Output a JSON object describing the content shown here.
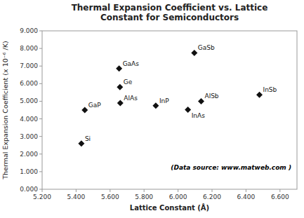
{
  "chart_data": {
    "type": "scatter",
    "title": "Thermal Expansion Coefficient vs. Lattice\nConstant for Semiconductors",
    "x_label": "Lattice Constant (Å)",
    "y_label": "Thermal Expansion Coefficient (x 10⁻⁶ /K)",
    "point_labels": [
      "Si",
      "GaP",
      "Ge",
      "GaAs",
      "AlAs",
      "InP",
      "GaSb",
      "AlSb",
      "InAs",
      "InSb"
    ],
    "x": [
      5.431,
      5.451,
      5.658,
      5.653,
      5.66,
      5.869,
      6.096,
      6.136,
      6.058,
      6.479
    ],
    "values": [
      2.6,
      4.5,
      5.8,
      6.86,
      4.9,
      4.75,
      7.75,
      5.0,
      4.52,
      5.37
    ],
    "color": "#111111",
    "marker": "diamond",
    "xlim": [
      5.2,
      6.7
    ],
    "ylim": [
      0.0,
      9.0
    ],
    "xticks": [
      {
        "value": 5.2,
        "label": "5.200"
      },
      {
        "value": 5.4,
        "label": "5.400"
      },
      {
        "value": 5.6,
        "label": "5.600"
      },
      {
        "value": 5.8,
        "label": "5.800"
      },
      {
        "value": 6.0,
        "label": "6.000"
      },
      {
        "value": 6.2,
        "label": "6.200"
      },
      {
        "value": 6.4,
        "label": "6.400"
      },
      {
        "value": 6.6,
        "label": "6.600"
      }
    ],
    "yticks": [
      {
        "value": 0,
        "label": "0.000"
      },
      {
        "value": 1,
        "label": "1.000"
      },
      {
        "value": 2,
        "label": "2.000"
      },
      {
        "value": 3,
        "label": "3.000"
      },
      {
        "value": 4,
        "label": "4.000"
      },
      {
        "value": 5,
        "label": "5.000"
      },
      {
        "value": 6,
        "label": "6.000"
      },
      {
        "value": 7,
        "label": "7.000"
      },
      {
        "value": 8,
        "label": "8.000"
      },
      {
        "value": 9,
        "label": "9.000"
      }
    ],
    "annotation": "(Data source: www.matweb.com )",
    "grid": false
  }
}
